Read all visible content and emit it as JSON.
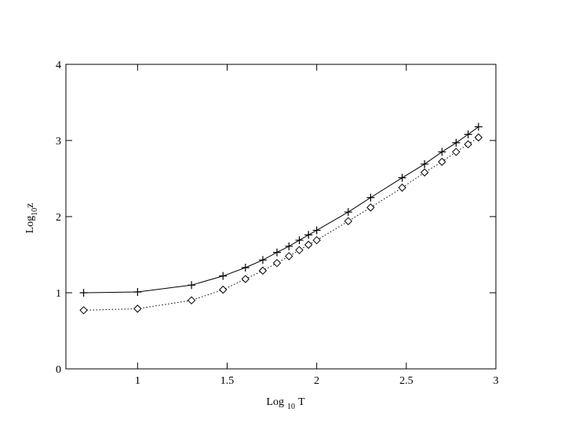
{
  "chart_data": {
    "type": "line",
    "xlabel": [
      "Log",
      "10",
      "T"
    ],
    "ylabel": [
      "Log",
      "10",
      "z"
    ],
    "x": [
      0.699,
      1,
      1.301,
      1.477,
      1.602,
      1.699,
      1.778,
      1.845,
      1.903,
      1.954,
      2,
      2.176,
      2.301,
      2.477,
      2.602,
      2.699,
      2.778,
      2.845,
      2.903
    ],
    "series": [
      {
        "color": "#000000",
        "marker": "plus",
        "dash": "solid",
        "values": [
          1.0,
          1.01,
          1.1,
          1.22,
          1.33,
          1.43,
          1.53,
          1.61,
          1.69,
          1.76,
          1.82,
          2.06,
          2.25,
          2.51,
          2.69,
          2.85,
          2.97,
          3.08,
          3.18
        ]
      },
      {
        "color": "#000000",
        "marker": "diamond",
        "dash": "dotted",
        "values": [
          0.77,
          0.79,
          0.9,
          1.04,
          1.18,
          1.29,
          1.39,
          1.48,
          1.56,
          1.63,
          1.69,
          1.94,
          2.12,
          2.38,
          2.58,
          2.72,
          2.85,
          2.95,
          3.04
        ]
      }
    ],
    "xlim": [
      0.6,
      3
    ],
    "ylim": [
      0,
      4
    ],
    "xticks": [
      1,
      1.5,
      2,
      2.5,
      3
    ],
    "yticks": [
      0,
      1,
      2,
      3,
      4
    ],
    "grid": false
  }
}
